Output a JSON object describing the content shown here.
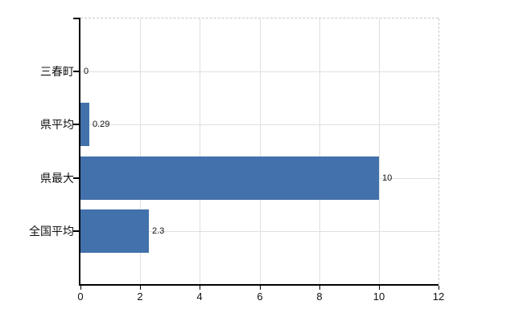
{
  "chart": {
    "background_color": "#ffffff",
    "bar_color": "#4271ab",
    "axis_color": "#000000",
    "gridline_color": "#dde1dc",
    "dashed_border_color": "#c9c9c9",
    "text_color": "#111111"
  },
  "chart_data": {
    "type": "bar",
    "orientation": "horizontal",
    "title": "",
    "xlabel": "",
    "ylabel": "",
    "categories": [
      "三春町",
      "県平均",
      "県最大",
      "全国平均"
    ],
    "values": [
      0,
      0.29,
      10,
      2.3
    ],
    "value_labels": [
      "0",
      "0.29",
      "10",
      "2.3"
    ],
    "xlim": [
      0,
      12
    ],
    "xticks": [
      0,
      2,
      4,
      6,
      8,
      10,
      12
    ],
    "xtick_labels": [
      "0",
      "2",
      "4",
      "6",
      "8",
      "10",
      "12"
    ],
    "grid": true,
    "legend": false
  }
}
